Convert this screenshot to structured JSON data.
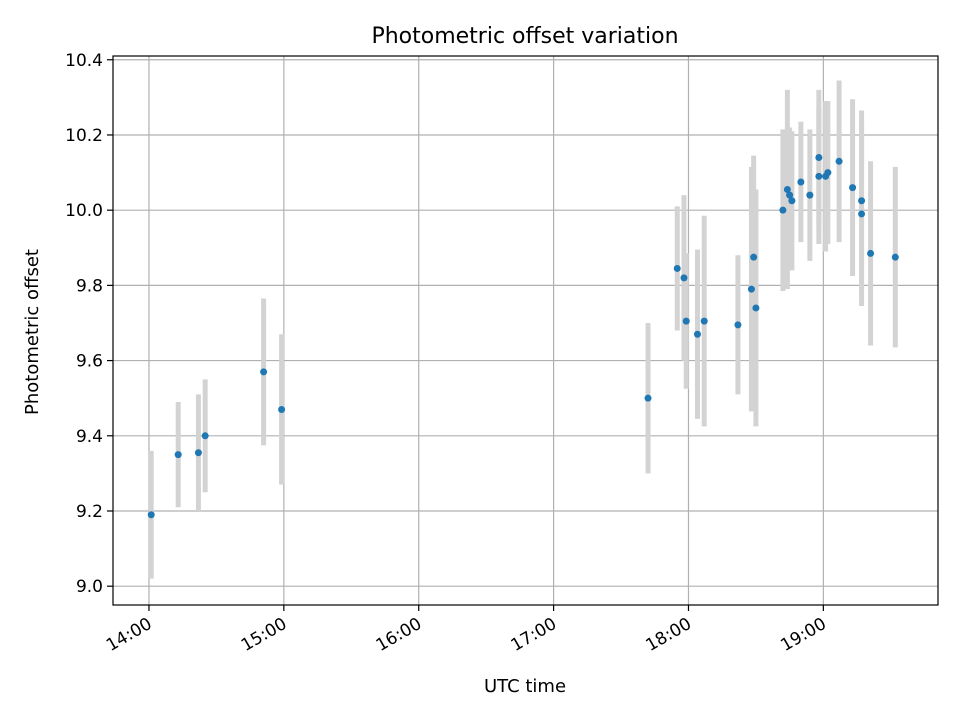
{
  "chart_data": {
    "type": "scatter",
    "title": "Photometric offset variation",
    "xlabel": "UTC time",
    "ylabel": "Photometric offset",
    "x_ticks": [
      "14:00",
      "15:00",
      "16:00",
      "17:00",
      "18:00",
      "19:00"
    ],
    "y_ticks": [
      "9.0",
      "9.2",
      "9.4",
      "9.6",
      "9.8",
      "10.0",
      "10.2",
      "10.4"
    ],
    "xlim": [
      "13:44",
      "19:51"
    ],
    "ylim": [
      8.95,
      10.41
    ],
    "grid": true,
    "colors": {
      "points": "#1f77b4",
      "errorbars": "#d3d3d3",
      "grid": "#b0b0b0"
    },
    "points": [
      {
        "x": "14:01",
        "y": 9.19,
        "err": 0.17
      },
      {
        "x": "14:13",
        "y": 9.35,
        "err": 0.14
      },
      {
        "x": "14:22",
        "y": 9.355,
        "err": 0.155
      },
      {
        "x": "14:25",
        "y": 9.4,
        "err": 0.15
      },
      {
        "x": "14:51",
        "y": 9.57,
        "err": 0.195
      },
      {
        "x": "14:59",
        "y": 9.47,
        "err": 0.2
      },
      {
        "x": "17:42",
        "y": 9.5,
        "err": 0.2
      },
      {
        "x": "17:55",
        "y": 9.845,
        "err": 0.165
      },
      {
        "x": "17:58",
        "y": 9.82,
        "err": 0.22
      },
      {
        "x": "17:59",
        "y": 9.705,
        "err": 0.18
      },
      {
        "x": "18:04",
        "y": 9.67,
        "err": 0.225
      },
      {
        "x": "18:07",
        "y": 9.705,
        "err": 0.28
      },
      {
        "x": "18:22",
        "y": 9.695,
        "err": 0.185
      },
      {
        "x": "18:28",
        "y": 9.79,
        "err": 0.325
      },
      {
        "x": "18:29",
        "y": 9.875,
        "err": 0.27
      },
      {
        "x": "18:30",
        "y": 9.74,
        "err": 0.315
      },
      {
        "x": "18:42",
        "y": 10.0,
        "err": 0.215
      },
      {
        "x": "18:44",
        "y": 10.055,
        "err": 0.265
      },
      {
        "x": "18:45",
        "y": 10.04,
        "err": 0.18
      },
      {
        "x": "18:46",
        "y": 10.025,
        "err": 0.185
      },
      {
        "x": "18:50",
        "y": 10.075,
        "err": 0.16
      },
      {
        "x": "18:54",
        "y": 10.04,
        "err": 0.175
      },
      {
        "x": "18:58",
        "y": 10.14,
        "err": 0.18
      },
      {
        "x": "18:58",
        "y": 10.09,
        "err": 0.18
      },
      {
        "x": "19:01",
        "y": 10.09,
        "err": 0.2
      },
      {
        "x": "19:02",
        "y": 10.1,
        "err": 0.19
      },
      {
        "x": "19:07",
        "y": 10.13,
        "err": 0.215
      },
      {
        "x": "19:13",
        "y": 10.06,
        "err": 0.235
      },
      {
        "x": "19:17",
        "y": 9.99,
        "err": 0.245
      },
      {
        "x": "19:17",
        "y": 10.025,
        "err": 0.24
      },
      {
        "x": "19:21",
        "y": 9.885,
        "err": 0.245
      },
      {
        "x": "19:32",
        "y": 9.875,
        "err": 0.24
      }
    ]
  }
}
